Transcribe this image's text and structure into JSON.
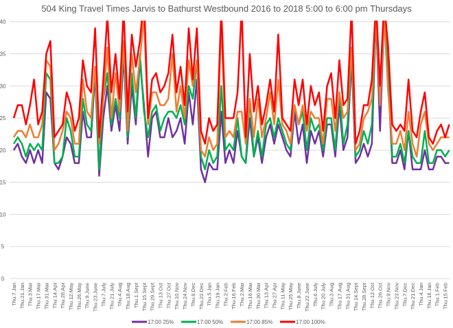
{
  "chart_data": {
    "type": "line",
    "title": "504 King Travel Times Jarvis to Bathurst Westbound 2016 to 2018 5:00 to 6:00 pm Thursdays",
    "xlabel": "",
    "ylabel": "",
    "ylim": [
      0,
      40
    ],
    "yticks": [
      "0",
      "5",
      "10",
      "15",
      "20",
      "25",
      "30",
      "35",
      "40"
    ],
    "grid": true,
    "legend_position": "bottom",
    "x_tick_labels": [
      "Thu.7.Jan",
      "Thu.21.Jan",
      "Thu.3.Mar",
      "Thu.17.Mar",
      "Thu.31.Mar",
      "Thu.14.Apr",
      "Thu.28.Apr",
      "Thu.12.May",
      "Thu.26.May",
      "Thu.9.June",
      "Thu.23.June",
      "Thu.7.July",
      "Thu.21.July",
      "Thu.4.Aug",
      "Thu.18.Aug",
      "Thu.1.Sept",
      "Thu.15.Sept",
      "Thu.29.Sept",
      "Thu.13.Oct",
      "Thu.27.Oct",
      "Thu.10.Nov",
      "Thu.24.Nov",
      "Thu.8.Dec",
      "Thu.22.Dec",
      "Thu.5.Jan",
      "Thu.19.Jan",
      "Thu.2.Feb",
      "Thu.16.Feb",
      "Thu.2.Mar",
      "Thu.16.Mar",
      "Thu.30.Mar",
      "Thu.13.Apr",
      "Thu.27.Apr",
      "Thu.11.May",
      "Thu.25.May",
      "Thu.8.June",
      "Thu.22.June",
      "Thu.6.July",
      "Thu.20.July",
      "Thu.3.Aug",
      "Thu.17.Aug",
      "Thu.31.Aug",
      "Thu.14.Sept",
      "Thu.28.Sept",
      "Thu.12.Oct",
      "Thu.26.Oct",
      "Thu.9.Nov",
      "Thu.23.Nov",
      "Thu.7.Dec",
      "Thu.21.Dec",
      "Thu.4.Jan",
      "Thu.18.Jan",
      "Thu.1.Feb",
      "Thu.15.Feb"
    ],
    "points_per_tick_label": 2,
    "series": [
      {
        "name": "17:00 25%",
        "color": "#7030a0",
        "values": [
          20,
          21,
          19,
          18,
          20,
          18,
          20,
          18,
          29,
          28,
          18,
          17,
          19,
          22,
          21,
          18,
          18,
          26,
          22,
          22,
          32,
          16,
          25,
          30,
          23,
          27,
          23,
          35,
          21,
          30,
          24,
          34,
          27,
          19,
          25,
          26,
          22,
          22,
          25,
          22,
          23,
          25,
          21,
          29,
          24,
          31,
          17,
          15,
          18,
          17,
          17,
          26,
          18,
          20,
          18,
          23,
          19,
          18,
          25,
          19,
          22,
          18,
          22,
          24,
          21,
          24,
          22,
          20,
          19,
          26,
          21,
          24,
          18,
          23,
          21,
          23,
          19,
          24,
          24,
          19,
          27,
          20,
          22,
          34,
          18,
          19,
          21,
          19,
          21,
          41,
          23,
          41,
          31,
          18,
          18,
          20,
          17,
          23,
          17,
          17,
          17,
          20,
          17,
          17,
          19,
          19,
          18,
          18
        ]
      },
      {
        "name": "17:00 50%",
        "color": "#00b050",
        "values": [
          21,
          22,
          21,
          19,
          21,
          20,
          21,
          20,
          32,
          31,
          18,
          18,
          19,
          25,
          23,
          19,
          19,
          28,
          24,
          23,
          33,
          17,
          28,
          32,
          24,
          28,
          25,
          36,
          22,
          32,
          25,
          35,
          26,
          22,
          26,
          27,
          23,
          25,
          26,
          26,
          25,
          27,
          24,
          30,
          28,
          34,
          19,
          17,
          20,
          18,
          19,
          30,
          20,
          21,
          20,
          25,
          19,
          18,
          28,
          19,
          23,
          19,
          24,
          25,
          22,
          25,
          23,
          21,
          20,
          27,
          24,
          26,
          20,
          25,
          23,
          24,
          20,
          25,
          25,
          20,
          29,
          21,
          24,
          35,
          19,
          20,
          23,
          21,
          24,
          41,
          27,
          41,
          33,
          19,
          19,
          21,
          18,
          23,
          19,
          18,
          18,
          23,
          18,
          18,
          20,
          20,
          19,
          20
        ]
      },
      {
        "name": "17:00 85%",
        "color": "#ed7d31",
        "values": [
          22,
          23,
          23,
          22,
          24,
          22,
          22,
          24,
          34,
          33,
          20,
          21,
          23,
          26,
          25,
          21,
          21,
          31,
          26,
          25,
          33,
          21,
          28,
          36,
          25,
          32,
          26,
          37,
          23,
          35,
          29,
          34,
          41,
          24,
          29,
          29,
          27,
          27,
          28,
          35,
          26,
          30,
          25,
          34,
          30,
          34,
          20,
          19,
          22,
          20,
          21,
          40,
          22,
          23,
          22,
          26,
          26,
          21,
          28,
          22,
          28,
          22,
          25,
          29,
          24,
          31,
          24,
          23,
          21,
          27,
          24,
          27,
          23,
          26,
          25,
          25,
          21,
          28,
          28,
          23,
          29,
          25,
          26,
          36,
          20,
          21,
          25,
          26,
          28,
          41,
          27,
          41,
          29,
          21,
          21,
          23,
          20,
          26,
          21,
          19,
          24,
          26,
          21,
          20,
          21,
          22,
          22,
          22
        ]
      },
      {
        "name": "17:00 100%",
        "color": "#ff0000",
        "values": [
          25,
          27,
          27,
          24,
          27,
          31,
          24,
          26,
          35,
          37,
          22,
          23,
          24,
          29,
          27,
          23,
          25,
          34,
          30,
          29,
          39,
          22,
          31,
          41,
          29,
          35,
          28,
          42,
          26,
          38,
          33,
          37,
          44,
          25,
          31,
          32,
          29,
          30,
          32,
          38,
          29,
          33,
          27,
          39,
          31,
          39,
          23,
          21,
          25,
          23,
          24,
          42,
          25,
          25,
          25,
          29,
          42,
          22,
          35,
          26,
          30,
          24,
          27,
          31,
          26,
          38,
          25,
          24,
          23,
          31,
          27,
          31,
          24,
          30,
          27,
          29,
          23,
          30,
          32,
          25,
          34,
          27,
          28,
          42,
          21,
          23,
          27,
          27,
          31,
          43,
          30,
          43,
          36,
          24,
          23,
          24,
          23,
          31,
          23,
          22,
          26,
          29,
          22,
          21,
          23,
          24,
          22,
          24
        ]
      }
    ]
  }
}
